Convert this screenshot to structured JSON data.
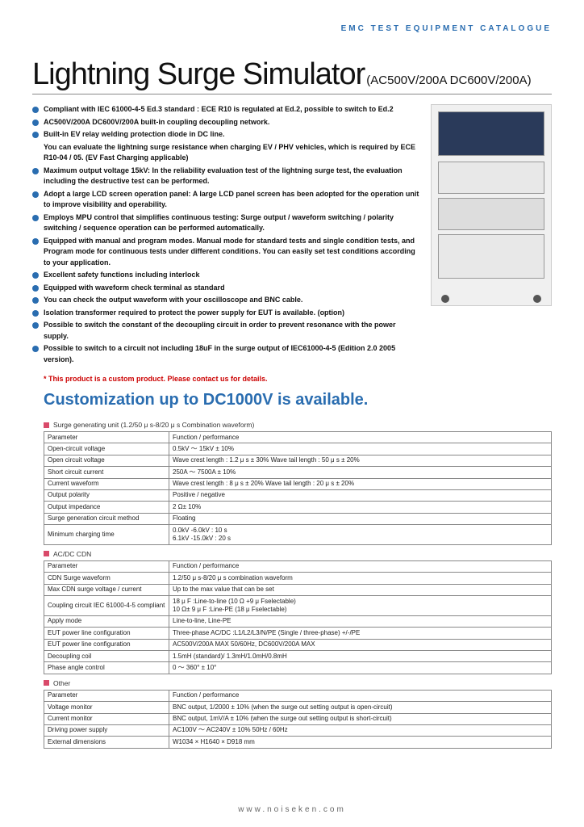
{
  "header_label": "EMC TEST EQUIPMENT CATALOGUE",
  "title": "Lightning Surge Simulator",
  "title_suffix": "(AC500V/200A DC600V/200A)",
  "features": [
    [
      "Compliant with IEC 61000-4-5 Ed.3 standard : ECE R10 is regulated at Ed.2, possible to switch to Ed.2"
    ],
    [
      "AC500V/200A DC600V/200A built-in coupling decoupling network."
    ],
    [
      "Built-in EV relay welding protection diode in DC line.",
      "You can evaluate the lightning surge resistance when charging EV / PHV vehicles, which is required by ECE R10-04 / 05.  (EV Fast Charging applicable)"
    ],
    [
      "Maximum output voltage 15kV: In the reliability evaluation test of the lightning surge test, the evaluation including the destructive test can be performed."
    ],
    [
      "Adopt a large LCD screen operation panel: A large LCD panel screen has been adopted for the operation unit to improve visibility and operability."
    ],
    [
      "Employs MPU control that simplifies continuous testing: Surge output / waveform switching / polarity switching / sequence operation can be performed automatically."
    ],
    [
      "Equipped with manual and program modes. Manual mode for standard tests and single condition tests, and Program mode for continuous tests under different conditions. You can easily set test conditions according to your application."
    ],
    [
      "Excellent safety functions including interlock"
    ],
    [
      "Equipped with waveform check terminal as standard"
    ],
    [
      "You can check the output waveform with your oscilloscope and BNC cable."
    ],
    [
      "Isolation transformer required to protect the power supply for EUT is available. (option)"
    ],
    [
      "Possible to switch the constant of the decoupling circuit in order to prevent resonance with the power supply."
    ],
    [
      "Possible to switch to a circuit not including 18uF in the surge output of IEC61000-4-5 (Edition 2.0 2005 version)."
    ]
  ],
  "note_red": "* This product is a custom product. Please contact us for details.",
  "customization": "Customization up to DC1000V is available.",
  "tables": [
    {
      "heading": "Surge generating unit (1.2/50 μ s-8/20 μ s Combination waveform)",
      "rows": [
        [
          "Parameter",
          "Function / performance"
        ],
        [
          "Open-circuit voltage",
          "0.5kV ～ 15kV ± 10%"
        ],
        [
          "Open circuit voltage",
          "Wave crest length : 1.2 μ s ± 30%    Wave tail length : 50 μ s ± 20%"
        ],
        [
          "Short circuit current",
          "250A ～ 7500A ± 10%"
        ],
        [
          "Current waveform",
          "Wave crest length : 8 μ s ± 20%    Wave tail length : 20 μ s ± 20%"
        ],
        [
          "Output polarity",
          "Positive / negative"
        ],
        [
          "Output impedance",
          "2 Ω± 10%"
        ],
        [
          "Surge generation circuit method",
          "Floating"
        ],
        [
          "Minimum charging time",
          "0.0kV -6.0kV : 10 s\n6.1kV -15.0kV : 20 s"
        ]
      ]
    },
    {
      "heading": "AC/DC CDN",
      "rows": [
        [
          "Parameter",
          "Function / performance"
        ],
        [
          "CDN Surge waveform",
          "1.2/50 μ s-8/20 μ s combination waveform"
        ],
        [
          "Max CDN surge voltage / current",
          "Up to the max value that can be set"
        ],
        [
          "Coupling circuit IEC 61000-4-5 compliant",
          "18 μ F :Line-to-line (10 Ω +9 μ Fselectable)\n10 Ω± 9 μ F :Line-PE (18 μ Fselectable)"
        ],
        [
          "Apply mode",
          "Line-to-line,  Line-PE"
        ],
        [
          "EUT power line configuration",
          "Three-phase AC/DC :L1/L2/L3/N/PE (Single / three-phase) +/-/PE"
        ],
        [
          "EUT power line configuration",
          "AC500V/200A MAX 50/60Hz,  DC600V/200A MAX"
        ],
        [
          "Decoupling coil",
          "1.5mH (standard)/ 1.3mH/1.0mH/0.8mH"
        ],
        [
          "Phase angle control",
          "0 ～ 360° ± 10°"
        ]
      ]
    },
    {
      "heading": "Other",
      "rows": [
        [
          "Parameter",
          "Function / performance"
        ],
        [
          "Voltage monitor",
          "BNC output,  1/2000 ± 10% (when the surge out setting output is open-circuit)"
        ],
        [
          "Current monitor",
          "BNC output,  1mV/A ± 10%  (when the surge out setting output is short-circuit)"
        ],
        [
          "Driving power supply",
          "AC100V ～ AC240V ± 10%   50Hz / 60Hz"
        ],
        [
          "External dimensions",
          "W1034 × H1640 × D918 mm"
        ]
      ]
    }
  ],
  "footer_url": "www.noiseken.com"
}
